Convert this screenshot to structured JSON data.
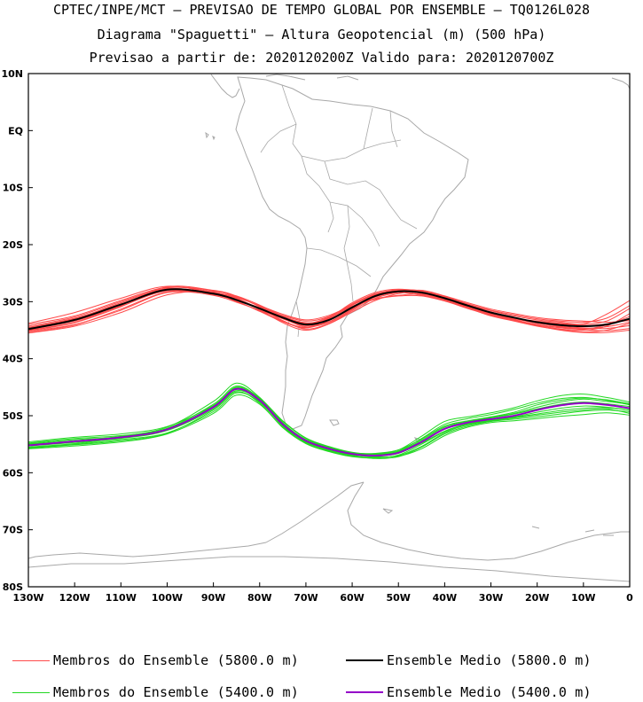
{
  "header": {
    "line1": "CPTEC/INPE/MCT — PREVISAO DE TEMPO GLOBAL POR ENSEMBLE — TQ0126L028",
    "line2": "Diagrama \"Spaguetti\" — Altura Geopotencial (m) (500 hPa)",
    "line3": "Previsao a partir de: 2020120200Z  Valido para: 2020120700Z"
  },
  "colors": {
    "member_5800": "#ff4a4a",
    "mean_5800": "#000000",
    "member_5400": "#22d822",
    "mean_5400": "#9400c8",
    "coast": "#a8a8a8"
  },
  "legend": [
    {
      "label": "Membros do Ensemble (5800.0 m)",
      "color": "#ff4a4a",
      "width": 1
    },
    {
      "label": "Ensemble Medio (5800.0 m)",
      "color": "#000000",
      "width": 2
    },
    {
      "label": "Membros do Ensemble (5400.0 m)",
      "color": "#22d822",
      "width": 1
    },
    {
      "label": "Ensemble Medio (5400.0 m)",
      "color": "#9400c8",
      "width": 2
    }
  ],
  "chart_data": {
    "type": "line",
    "xlim": [
      -130,
      0
    ],
    "ylim": [
      -80,
      10
    ],
    "x_ticks": [
      {
        "value": -130,
        "label": "130W"
      },
      {
        "value": -120,
        "label": "120W"
      },
      {
        "value": -110,
        "label": "110W"
      },
      {
        "value": -100,
        "label": "100W"
      },
      {
        "value": -90,
        "label": "90W"
      },
      {
        "value": -80,
        "label": "80W"
      },
      {
        "value": -70,
        "label": "70W"
      },
      {
        "value": -60,
        "label": "60W"
      },
      {
        "value": -50,
        "label": "50W"
      },
      {
        "value": -40,
        "label": "40W"
      },
      {
        "value": -30,
        "label": "30W"
      },
      {
        "value": -20,
        "label": "20W"
      },
      {
        "value": -10,
        "label": "10W"
      },
      {
        "value": 0,
        "label": "0"
      }
    ],
    "y_ticks": [
      {
        "value": 10,
        "label": "10N"
      },
      {
        "value": 0,
        "label": "EQ"
      },
      {
        "value": -10,
        "label": "10S"
      },
      {
        "value": -20,
        "label": "20S"
      },
      {
        "value": -30,
        "label": "30S"
      },
      {
        "value": -40,
        "label": "40S"
      },
      {
        "value": -50,
        "label": "50S"
      },
      {
        "value": -60,
        "label": "60S"
      },
      {
        "value": -70,
        "label": "70S"
      },
      {
        "value": -80,
        "label": "80S"
      }
    ],
    "x": [
      -130,
      -120,
      -110,
      -100,
      -90,
      -85,
      -80,
      -75,
      -70,
      -65,
      -60,
      -55,
      -50,
      -45,
      -40,
      -35,
      -30,
      -25,
      -20,
      -15,
      -10,
      -5,
      0
    ],
    "series": [
      {
        "name": "Ensemble Medio (5800.0 m)",
        "y": [
          -34.8,
          -33.2,
          -30.5,
          -27.9,
          -28.6,
          -29.7,
          -31.2,
          -32.8,
          -34.0,
          -33.2,
          -31.0,
          -29.0,
          -28.2,
          -28.4,
          -29.4,
          -30.7,
          -31.9,
          -32.8,
          -33.6,
          -34.1,
          -34.3,
          -34.0,
          -33.0
        ]
      },
      {
        "name": "Ensemble Medio (5400.0 m)",
        "y": [
          -55.2,
          -54.5,
          -53.8,
          -52.4,
          -48.5,
          -45.3,
          -47.3,
          -51.5,
          -54.4,
          -55.8,
          -56.7,
          -57.0,
          -56.5,
          -54.6,
          -52.3,
          -51.2,
          -50.6,
          -50.0,
          -49.0,
          -48.2,
          -47.8,
          -48.1,
          -48.7
        ]
      }
    ],
    "members_5800": [
      [
        -34.0,
        -32.5,
        -29.8,
        -27.5,
        -28.3,
        -29.5,
        -31.2,
        -33.3,
        -34.8,
        -33.8,
        -31.6,
        -29.4,
        -28.4,
        -28.0,
        -29.0,
        -30.2,
        -31.3,
        -32.1,
        -32.8,
        -33.2,
        -33.4,
        -33.6,
        -33.3
      ],
      [
        -35.2,
        -34.0,
        -31.5,
        -28.4,
        -28.8,
        -29.8,
        -31.0,
        -32.4,
        -33.4,
        -32.6,
        -30.4,
        -28.6,
        -28.1,
        -28.8,
        -29.8,
        -31.1,
        -32.5,
        -33.4,
        -34.3,
        -34.9,
        -35.3,
        -35.0,
        -33.8
      ],
      [
        -34.6,
        -33.0,
        -30.2,
        -27.8,
        -28.5,
        -29.6,
        -31.3,
        -33.0,
        -34.2,
        -33.5,
        -31.3,
        -29.2,
        -28.3,
        -28.2,
        -29.1,
        -30.5,
        -31.6,
        -32.5,
        -33.2,
        -33.6,
        -33.9,
        -32.2,
        -29.8
      ],
      [
        -35.5,
        -34.3,
        -31.9,
        -28.8,
        -28.2,
        -29.2,
        -30.8,
        -32.6,
        -33.9,
        -32.9,
        -30.6,
        -28.8,
        -28.0,
        -28.6,
        -29.6,
        -31.0,
        -32.3,
        -33.3,
        -34.1,
        -34.8,
        -35.0,
        -34.3,
        -32.1
      ],
      [
        -33.8,
        -31.9,
        -29.4,
        -27.3,
        -28.6,
        -30.0,
        -31.6,
        -33.4,
        -34.5,
        -33.0,
        -30.8,
        -29.5,
        -28.9,
        -28.7,
        -29.7,
        -30.9,
        -32.0,
        -32.9,
        -33.5,
        -33.9,
        -34.2,
        -33.9,
        -33.1
      ],
      [
        -34.9,
        -33.4,
        -30.8,
        -28.1,
        -28.9,
        -30.1,
        -31.5,
        -33.0,
        -34.1,
        -32.8,
        -30.2,
        -28.4,
        -27.8,
        -28.3,
        -29.3,
        -30.6,
        -31.8,
        -32.8,
        -33.7,
        -34.4,
        -34.9,
        -35.1,
        -34.7
      ],
      [
        -35.1,
        -33.7,
        -30.9,
        -27.6,
        -28.1,
        -29.1,
        -30.9,
        -32.9,
        -34.4,
        -33.6,
        -31.4,
        -29.0,
        -28.0,
        -28.1,
        -29.2,
        -30.7,
        -32.2,
        -33.2,
        -34.0,
        -34.6,
        -34.8,
        -34.1,
        -32.6
      ],
      [
        -34.3,
        -32.7,
        -30.0,
        -27.7,
        -28.7,
        -29.9,
        -31.7,
        -33.5,
        -34.6,
        -33.3,
        -31.0,
        -29.6,
        -29.0,
        -29.0,
        -29.9,
        -31.2,
        -32.4,
        -33.0,
        -33.4,
        -33.8,
        -34.0,
        -33.4,
        -31.2
      ],
      [
        -35.4,
        -34.1,
        -31.3,
        -28.3,
        -28.4,
        -29.3,
        -30.7,
        -32.2,
        -33.2,
        -32.4,
        -30.6,
        -28.9,
        -28.2,
        -28.5,
        -29.5,
        -30.8,
        -32.1,
        -33.1,
        -34.2,
        -35.0,
        -35.4,
        -35.4,
        -35.0
      ],
      [
        -34.5,
        -32.9,
        -30.4,
        -27.9,
        -28.4,
        -29.4,
        -31.4,
        -33.7,
        -35.0,
        -33.9,
        -31.8,
        -29.8,
        -28.6,
        -28.3,
        -29.1,
        -30.4,
        -31.5,
        -32.3,
        -33.0,
        -33.4,
        -33.6,
        -32.9,
        -30.7
      ],
      [
        -34.7,
        -33.3,
        -30.6,
        -28.0,
        -28.6,
        -29.7,
        -31.1,
        -32.6,
        -33.7,
        -33.1,
        -31.2,
        -29.1,
        -28.4,
        -28.9,
        -29.8,
        -31.0,
        -32.2,
        -33.0,
        -33.8,
        -34.3,
        -34.6,
        -34.7,
        -34.2
      ],
      [
        -35.0,
        -33.6,
        -30.7,
        -27.4,
        -28.0,
        -29.0,
        -30.6,
        -32.5,
        -33.8,
        -32.7,
        -30.5,
        -28.7,
        -27.9,
        -28.2,
        -29.4,
        -30.9,
        -32.3,
        -33.3,
        -34.0,
        -34.5,
        -34.7,
        -34.4,
        -33.6
      ]
    ],
    "members_5400": [
      [
        -54.8,
        -54.0,
        -53.5,
        -52.2,
        -48.0,
        -44.8,
        -47.0,
        -51.0,
        -54.0,
        -55.5,
        -56.5,
        -56.8,
        -56.2,
        -54.0,
        -51.5,
        -50.5,
        -49.8,
        -48.9,
        -47.8,
        -47.0,
        -46.8,
        -47.3,
        -48.1
      ],
      [
        -55.6,
        -55.0,
        -54.2,
        -53.0,
        -49.3,
        -46.0,
        -47.6,
        -51.8,
        -54.8,
        -56.2,
        -57.1,
        -57.3,
        -57.0,
        -55.4,
        -53.0,
        -51.6,
        -51.0,
        -50.6,
        -50.2,
        -49.7,
        -49.2,
        -49.0,
        -49.3
      ],
      [
        -55.0,
        -54.4,
        -53.6,
        -52.0,
        -47.5,
        -44.3,
        -46.8,
        -51.2,
        -54.3,
        -55.7,
        -56.6,
        -56.9,
        -56.3,
        -54.3,
        -52.0,
        -51.0,
        -50.3,
        -49.6,
        -48.5,
        -47.6,
        -47.1,
        -47.5,
        -48.0
      ],
      [
        -55.8,
        -55.3,
        -54.6,
        -53.2,
        -49.6,
        -46.4,
        -48.0,
        -52.0,
        -54.7,
        -56.0,
        -56.8,
        -57.2,
        -57.1,
        -55.8,
        -53.5,
        -52.0,
        -51.2,
        -50.9,
        -50.5,
        -50.1,
        -49.8,
        -49.5,
        -49.9
      ],
      [
        -54.6,
        -53.8,
        -53.2,
        -51.9,
        -48.2,
        -45.0,
        -46.9,
        -50.9,
        -53.9,
        -55.4,
        -56.4,
        -56.7,
        -56.0,
        -53.6,
        -51.0,
        -50.2,
        -49.5,
        -48.6,
        -47.4,
        -46.5,
        -46.2,
        -46.8,
        -47.6
      ],
      [
        -55.3,
        -54.7,
        -54.0,
        -52.6,
        -48.8,
        -45.6,
        -47.4,
        -51.6,
        -54.5,
        -55.9,
        -56.9,
        -57.1,
        -56.6,
        -54.8,
        -52.7,
        -51.4,
        -50.8,
        -50.2,
        -49.4,
        -48.7,
        -48.3,
        -48.5,
        -49.0
      ],
      [
        -55.5,
        -54.9,
        -53.9,
        -52.5,
        -48.6,
        -45.4,
        -47.5,
        -51.7,
        -54.6,
        -56.1,
        -57.0,
        -57.5,
        -57.2,
        -55.5,
        -53.2,
        -51.8,
        -51.0,
        -50.3,
        -49.7,
        -49.1,
        -48.7,
        -48.6,
        -49.0
      ],
      [
        -54.9,
        -54.2,
        -53.7,
        -52.3,
        -48.3,
        -45.1,
        -47.2,
        -51.3,
        -54.2,
        -55.6,
        -56.5,
        -56.6,
        -56.0,
        -54.1,
        -51.8,
        -50.9,
        -50.2,
        -49.4,
        -48.1,
        -47.3,
        -46.9,
        -47.2,
        -47.9
      ],
      [
        -55.7,
        -55.1,
        -54.4,
        -53.1,
        -49.0,
        -45.8,
        -47.8,
        -52.1,
        -54.9,
        -56.3,
        -57.2,
        -57.4,
        -56.9,
        -55.0,
        -52.8,
        -51.5,
        -50.9,
        -50.4,
        -49.9,
        -49.4,
        -49.0,
        -48.8,
        -49.6
      ],
      [
        -55.1,
        -54.5,
        -53.8,
        -52.4,
        -48.4,
        -45.2,
        -47.1,
        -51.4,
        -54.4,
        -55.8,
        -56.7,
        -57.0,
        -56.4,
        -54.5,
        -52.2,
        -51.1,
        -50.4,
        -49.7,
        -48.8,
        -48.0,
        -47.6,
        -47.9,
        -48.4
      ]
    ]
  }
}
